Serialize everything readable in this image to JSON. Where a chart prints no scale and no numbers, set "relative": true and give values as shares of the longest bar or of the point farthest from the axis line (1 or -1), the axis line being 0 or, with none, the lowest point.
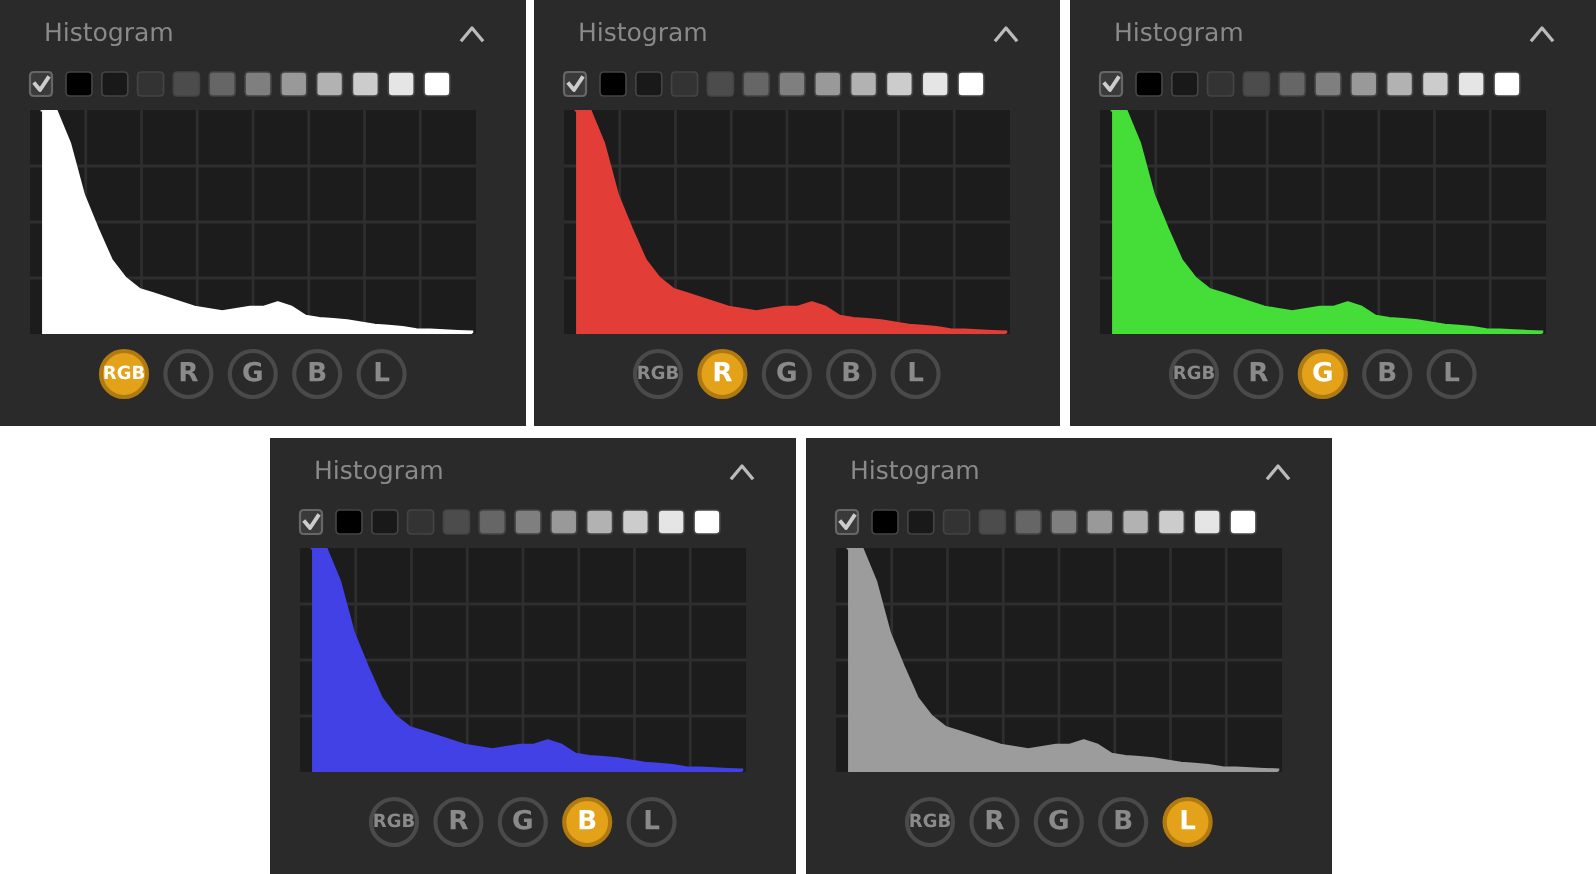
{
  "chart_data": [
    {
      "type": "area",
      "title": "Histogram",
      "relative": true,
      "grid": true,
      "color": "#ffffff",
      "categories": [
        null,
        null,
        null,
        null,
        null,
        null,
        null,
        null,
        null,
        null,
        null,
        null,
        null,
        null,
        null,
        null,
        null,
        null,
        null,
        null,
        null,
        null,
        null,
        null,
        null,
        null,
        null,
        null,
        null,
        null,
        null,
        null
      ],
      "values": [
        1,
        1,
        0.85,
        0.62,
        0.47,
        0.33,
        0.25,
        0.2,
        0.18,
        0.16,
        0.14,
        0.12,
        0.11,
        0.1,
        0.11,
        0.12,
        0.12,
        0.14,
        0.12,
        0.08,
        0.07,
        0.065,
        0.06,
        0.05,
        0.04,
        0.035,
        0.03,
        0.02,
        0.018,
        0.015,
        0.012,
        0.01
      ],
      "annotations": [
        "RGB",
        "R",
        "G",
        "B",
        "L"
      ]
    },
    {
      "type": "area",
      "title": "Histogram",
      "relative": true,
      "grid": true,
      "color": "#e23d36",
      "categories": [
        null,
        null,
        null,
        null,
        null,
        null,
        null,
        null,
        null,
        null,
        null,
        null,
        null,
        null,
        null,
        null,
        null,
        null,
        null,
        null,
        null,
        null,
        null,
        null,
        null,
        null,
        null,
        null,
        null,
        null,
        null,
        null
      ],
      "values": [
        1,
        1,
        0.85,
        0.62,
        0.47,
        0.33,
        0.25,
        0.2,
        0.18,
        0.16,
        0.14,
        0.12,
        0.11,
        0.1,
        0.11,
        0.12,
        0.12,
        0.14,
        0.12,
        0.08,
        0.07,
        0.065,
        0.06,
        0.05,
        0.04,
        0.035,
        0.03,
        0.02,
        0.018,
        0.015,
        0.012,
        0.01
      ],
      "annotations": [
        "RGB",
        "R",
        "G",
        "B",
        "L"
      ]
    },
    {
      "type": "area",
      "title": "Histogram",
      "relative": true,
      "grid": true,
      "color": "#45dd38",
      "categories": [
        null,
        null,
        null,
        null,
        null,
        null,
        null,
        null,
        null,
        null,
        null,
        null,
        null,
        null,
        null,
        null,
        null,
        null,
        null,
        null,
        null,
        null,
        null,
        null,
        null,
        null,
        null,
        null,
        null,
        null,
        null,
        null
      ],
      "values": [
        1,
        1,
        0.85,
        0.62,
        0.47,
        0.33,
        0.25,
        0.2,
        0.18,
        0.16,
        0.14,
        0.12,
        0.11,
        0.1,
        0.11,
        0.12,
        0.12,
        0.14,
        0.12,
        0.08,
        0.07,
        0.065,
        0.06,
        0.05,
        0.04,
        0.035,
        0.03,
        0.02,
        0.018,
        0.015,
        0.012,
        0.01
      ],
      "annotations": [
        "RGB",
        "R",
        "G",
        "B",
        "L"
      ]
    },
    {
      "type": "area",
      "title": "Histogram",
      "relative": true,
      "grid": true,
      "color": "#4141e6",
      "categories": [
        null,
        null,
        null,
        null,
        null,
        null,
        null,
        null,
        null,
        null,
        null,
        null,
        null,
        null,
        null,
        null,
        null,
        null,
        null,
        null,
        null,
        null,
        null,
        null,
        null,
        null,
        null,
        null,
        null,
        null,
        null,
        null
      ],
      "values": [
        1,
        1,
        0.85,
        0.62,
        0.47,
        0.33,
        0.25,
        0.2,
        0.18,
        0.16,
        0.14,
        0.12,
        0.11,
        0.1,
        0.11,
        0.12,
        0.12,
        0.14,
        0.12,
        0.08,
        0.07,
        0.065,
        0.06,
        0.05,
        0.04,
        0.035,
        0.03,
        0.02,
        0.018,
        0.015,
        0.012,
        0.01
      ],
      "annotations": [
        "RGB",
        "R",
        "G",
        "B",
        "L"
      ]
    },
    {
      "type": "area",
      "title": "Histogram",
      "relative": true,
      "grid": true,
      "color": "#9c9c9c",
      "categories": [
        null,
        null,
        null,
        null,
        null,
        null,
        null,
        null,
        null,
        null,
        null,
        null,
        null,
        null,
        null,
        null,
        null,
        null,
        null,
        null,
        null,
        null,
        null,
        null,
        null,
        null,
        null,
        null,
        null,
        null,
        null,
        null
      ],
      "values": [
        1,
        1,
        0.85,
        0.62,
        0.47,
        0.33,
        0.25,
        0.2,
        0.18,
        0.16,
        0.14,
        0.12,
        0.11,
        0.1,
        0.11,
        0.12,
        0.12,
        0.14,
        0.12,
        0.08,
        0.07,
        0.065,
        0.06,
        0.05,
        0.04,
        0.035,
        0.03,
        0.02,
        0.018,
        0.015,
        0.012,
        0.01
      ],
      "annotations": [
        "RGB",
        "R",
        "G",
        "B",
        "L"
      ]
    }
  ]
}
